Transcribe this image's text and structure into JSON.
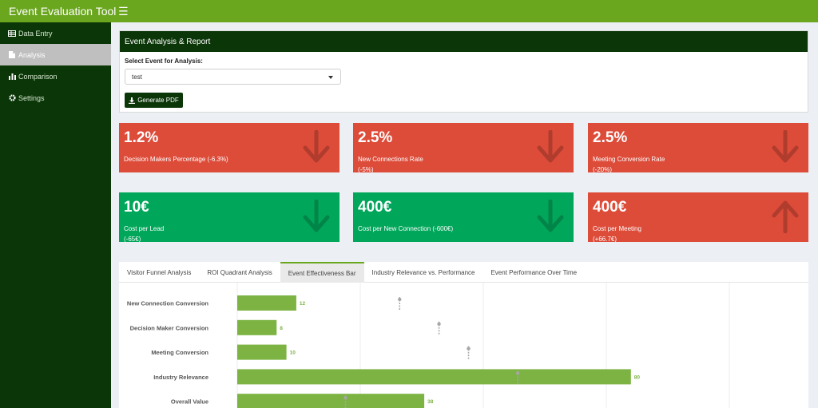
{
  "app": {
    "title": "Event Evaluation Tool",
    "menu_icon": "hamburger-icon"
  },
  "sidebar": {
    "items": [
      {
        "label": "Data Entry",
        "icon": "table-icon",
        "active": false
      },
      {
        "label": "Analysis",
        "icon": "document-icon",
        "active": true
      },
      {
        "label": "Comparison",
        "icon": "bar-chart-icon",
        "active": false
      },
      {
        "label": "Settings",
        "icon": "gear-icon",
        "active": false
      }
    ]
  },
  "report": {
    "title": "Event Analysis & Report",
    "select_label": "Select Event for Analysis:",
    "selected_event": "test",
    "pdf_button": "Generate PDF"
  },
  "kpis": [
    {
      "value": "1.2%",
      "label_line1": "Decision Makers Percentage (-6.3%)",
      "label_line2": "",
      "status": "bad",
      "trend": "down"
    },
    {
      "value": "2.5%",
      "label_line1": "New Connections Rate",
      "label_line2": "(-5%)",
      "status": "bad",
      "trend": "down"
    },
    {
      "value": "2.5%",
      "label_line1": "Meeting Conversion Rate",
      "label_line2": "(-20%)",
      "status": "bad",
      "trend": "down"
    },
    {
      "value": "10€",
      "label_line1": "Cost per Lead",
      "label_line2": "(-65€)",
      "status": "good",
      "trend": "down"
    },
    {
      "value": "400€",
      "label_line1": "Cost per New Connection (-600€)",
      "label_line2": "",
      "status": "good",
      "trend": "down"
    },
    {
      "value": "400€",
      "label_line1": "Cost per Meeting",
      "label_line2": "(+66.7€)",
      "status": "bad",
      "trend": "up"
    }
  ],
  "colors": {
    "header": "#6aa61e",
    "sidebar": "#0b3608",
    "bad": "#dd4b39",
    "good": "#00a65a",
    "bar": "#7cb342",
    "marker": "#a6a6a6"
  },
  "tabs": [
    {
      "label": "Visitor Funnel Analysis",
      "active": false
    },
    {
      "label": "ROI Quadrant Analysis",
      "active": false
    },
    {
      "label": "Event Effectiveness Bar",
      "active": true
    },
    {
      "label": "Industry Relevance vs. Performance",
      "active": false
    },
    {
      "label": "Event Performance Over Time",
      "active": false
    }
  ],
  "chart_data": {
    "type": "bar",
    "orientation": "horizontal",
    "categories": [
      "New Connection Conversion",
      "Decision Maker Conversion",
      "Meeting Conversion",
      "Industry Relevance",
      "Overall Value"
    ],
    "values": [
      12,
      8,
      10,
      80,
      38
    ],
    "benchmarks": [
      33,
      41,
      47,
      57,
      22
    ],
    "xlim": [
      0,
      100
    ],
    "grid": true
  }
}
